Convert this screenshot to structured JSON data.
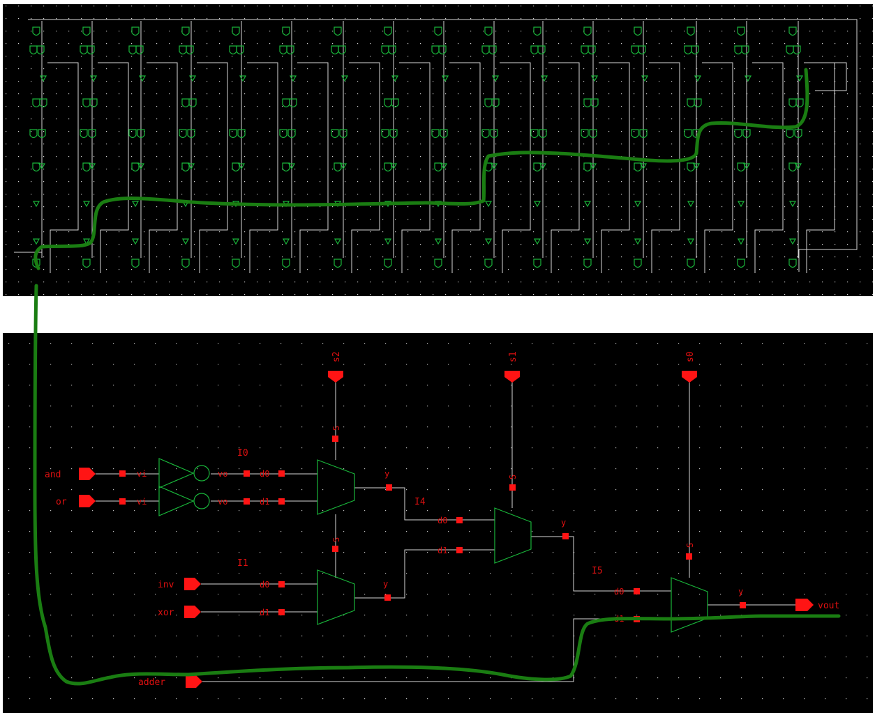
{
  "colors": {
    "background": "#000000",
    "gap": "#ffffff",
    "wire": "#d8d8d8",
    "gate": "#19b53a",
    "pin": "#ff1414",
    "label": "#e01010",
    "hand_annotation": "#1a7d12"
  },
  "schematic": {
    "inputs": [
      {
        "name": "and"
      },
      {
        "name": "or"
      },
      {
        "name": "inv"
      },
      {
        "name": "xor"
      },
      {
        "name": "adder"
      }
    ],
    "selects": [
      "s2",
      "s1",
      "s0"
    ],
    "output": "vout",
    "instances": {
      "i0": "I0",
      "i1": "I1",
      "i4": "I4",
      "i5": "I5"
    },
    "pins": {
      "vi": "vi",
      "vo": "vo",
      "d0": "d0",
      "d1": "d1",
      "s": "S",
      "y": "y"
    }
  }
}
